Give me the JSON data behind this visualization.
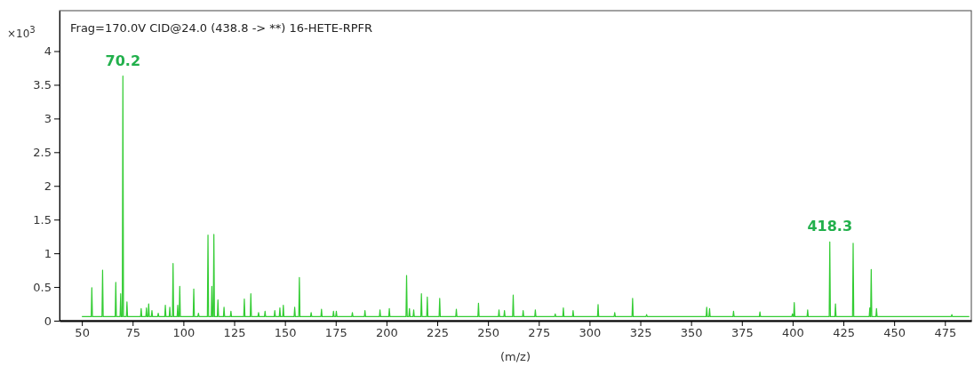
{
  "chart_data": {
    "type": "line",
    "title": "Frag=170.0V CID@24.0 (438.8 -> **) 16-HETE-RPFR",
    "xlabel": "(m/z)",
    "ylabel": "×10$^{3}$",
    "xlim": [
      39,
      488
    ],
    "xticks": [
      50,
      75,
      100,
      125,
      150,
      175,
      200,
      225,
      250,
      275,
      300,
      325,
      350,
      375,
      400,
      425,
      450,
      475
    ],
    "ylim": [
      0,
      4.6
    ],
    "yticks": [
      0,
      0.5,
      1,
      1.5,
      2,
      2.5,
      3,
      3.5,
      4
    ],
    "grid": false,
    "marker": "none",
    "line_style": "solid",
    "annotations": [
      {
        "text": "70.2",
        "x": 70.2,
        "y": 3.63
      },
      {
        "text": "418.3",
        "x": 418.3,
        "y": 1.17
      }
    ],
    "series": [
      {
        "color": "#33cc33",
        "x": [
          50,
          54.6,
          54.9,
          55.2,
          59.9,
          60.2,
          60.5,
          66.4,
          66.7,
          67.0,
          68.8,
          69.1,
          69.4,
          69.9,
          70.2,
          70.5,
          71.9,
          72.2,
          72.5,
          78.9,
          79.2,
          79.5,
          81.5,
          81.8,
          82.1,
          82.6,
          82.9,
          83.2,
          84.2,
          84.5,
          84.8,
          87.3,
          87.6,
          87.9,
          90.8,
          91.1,
          91.4,
          93.0,
          93.3,
          93.6,
          94.6,
          94.9,
          95.2,
          96.9,
          97.2,
          97.5,
          97.9,
          98.2,
          98.5,
          104.8,
          105.1,
          105.4,
          107.1,
          107.4,
          107.7,
          111.8,
          112.1,
          112.4,
          113.7,
          114.0,
          114.3,
          114.7,
          115.0,
          115.3,
          116.7,
          117.0,
          117.3,
          119.7,
          120.0,
          120.3,
          123.1,
          123.4,
          123.7,
          129.7,
          130.0,
          130.3,
          132.9,
          133.2,
          133.5,
          136.7,
          137.0,
          137.3,
          139.9,
          140.2,
          140.5,
          144.7,
          145.0,
          145.3,
          147.2,
          147.5,
          147.8,
          148.9,
          149.2,
          149.5,
          154.5,
          154.8,
          155.1,
          156.8,
          157.1,
          157.4,
          162.6,
          162.9,
          163.2,
          167.7,
          168.0,
          168.3,
          173.6,
          173.9,
          174.2,
          175.0,
          175.3,
          175.6,
          182.9,
          183.2,
          183.5,
          189.1,
          189.4,
          189.7,
          196.5,
          196.8,
          197.1,
          201.1,
          201.4,
          201.7,
          209.6,
          209.9,
          210.2,
          211.0,
          211.3,
          211.6,
          213.1,
          213.4,
          213.7,
          216.9,
          217.2,
          217.5,
          219.8,
          220.1,
          220.4,
          225.9,
          226.2,
          226.5,
          234.1,
          234.4,
          234.7,
          245.0,
          245.3,
          245.6,
          255.1,
          255.4,
          255.7,
          257.8,
          258.1,
          258.4,
          262.1,
          262.4,
          262.7,
          267.0,
          267.3,
          267.6,
          273.0,
          273.3,
          273.6,
          282.8,
          283.1,
          283.4,
          286.8,
          287.1,
          287.4,
          291.6,
          291.9,
          292.2,
          303.9,
          304.2,
          304.5,
          312.1,
          312.4,
          312.7,
          320.9,
          321.2,
          321.5,
          327.8,
          328.1,
          328.4,
          357.4,
          357.7,
          358.0,
          358.8,
          359.1,
          359.4,
          370.6,
          370.9,
          371.2,
          383.6,
          383.9,
          384.2,
          399.6,
          399.9,
          400.2,
          400.5,
          400.8,
          401.1,
          407.1,
          407.4,
          407.7,
          418.0,
          418.3,
          418.6,
          420.8,
          421.1,
          421.4,
          429.5,
          429.8,
          430.1,
          437.7,
          438.0,
          438.3,
          438.4,
          438.7,
          439.0,
          441.0,
          441.3,
          441.6,
          478.1,
          478.4,
          478.7,
          487
        ],
        "values": [
          0.06,
          0.06,
          0.49,
          0.06,
          0.06,
          0.75,
          0.06,
          0.06,
          0.57,
          0.06,
          0.06,
          0.4,
          0.06,
          0.06,
          3.63,
          0.06,
          0.06,
          0.28,
          0.06,
          0.06,
          0.18,
          0.06,
          0.06,
          0.19,
          0.06,
          0.06,
          0.25,
          0.06,
          0.06,
          0.15,
          0.06,
          0.06,
          0.11,
          0.06,
          0.06,
          0.23,
          0.06,
          0.06,
          0.2,
          0.06,
          0.06,
          0.85,
          0.06,
          0.06,
          0.23,
          0.06,
          0.06,
          0.51,
          0.06,
          0.06,
          0.47,
          0.06,
          0.06,
          0.11,
          0.06,
          0.06,
          1.27,
          0.06,
          0.06,
          0.51,
          0.06,
          0.06,
          1.28,
          0.06,
          0.06,
          0.31,
          0.06,
          0.06,
          0.2,
          0.06,
          0.06,
          0.14,
          0.06,
          0.06,
          0.32,
          0.06,
          0.06,
          0.4,
          0.06,
          0.06,
          0.12,
          0.06,
          0.06,
          0.14,
          0.06,
          0.06,
          0.15,
          0.06,
          0.06,
          0.19,
          0.06,
          0.06,
          0.23,
          0.06,
          0.06,
          0.2,
          0.06,
          0.06,
          0.64,
          0.06,
          0.06,
          0.12,
          0.06,
          0.06,
          0.17,
          0.06,
          0.06,
          0.14,
          0.06,
          0.06,
          0.14,
          0.06,
          0.06,
          0.12,
          0.06,
          0.06,
          0.15,
          0.06,
          0.06,
          0.16,
          0.06,
          0.06,
          0.18,
          0.06,
          0.06,
          0.67,
          0.06,
          0.06,
          0.18,
          0.06,
          0.06,
          0.16,
          0.06,
          0.06,
          0.4,
          0.06,
          0.06,
          0.35,
          0.06,
          0.06,
          0.33,
          0.06,
          0.06,
          0.17,
          0.06,
          0.06,
          0.26,
          0.06,
          0.06,
          0.16,
          0.06,
          0.06,
          0.15,
          0.06,
          0.06,
          0.38,
          0.06,
          0.06,
          0.15,
          0.06,
          0.06,
          0.16,
          0.06,
          0.06,
          0.1,
          0.06,
          0.06,
          0.19,
          0.06,
          0.06,
          0.15,
          0.06,
          0.06,
          0.24,
          0.06,
          0.06,
          0.12,
          0.06,
          0.06,
          0.33,
          0.06,
          0.06,
          0.09,
          0.06,
          0.06,
          0.2,
          0.06,
          0.06,
          0.18,
          0.06,
          0.06,
          0.14,
          0.06,
          0.06,
          0.13,
          0.06,
          0.06,
          0.1,
          0.06,
          0.06,
          0.27,
          0.06,
          0.06,
          0.16,
          0.06,
          0.06,
          1.17,
          0.06,
          0.06,
          0.25,
          0.06,
          0.06,
          1.15,
          0.06,
          0.06,
          0.19,
          0.06,
          0.06,
          0.76,
          0.06,
          0.06,
          0.18,
          0.06,
          0.06,
          0.09,
          0.06,
          0.06
        ]
      }
    ]
  }
}
